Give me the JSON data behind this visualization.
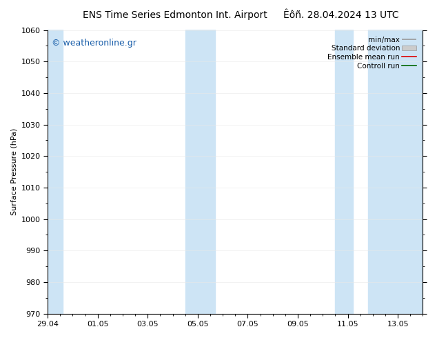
{
  "title_left": "ENS Time Series Edmonton Int. Airport",
  "title_right": "Êôñ. 28.04.2024 13 UTC",
  "ylabel": "Surface Pressure (hPa)",
  "ylim": [
    970,
    1060
  ],
  "yticks": [
    970,
    980,
    990,
    1000,
    1010,
    1020,
    1030,
    1040,
    1050,
    1060
  ],
  "xlim_start": 0,
  "xlim_end": 15,
  "xtick_labels": [
    "29.04",
    "01.05",
    "03.05",
    "05.05",
    "07.05",
    "09.05",
    "11.05",
    "13.05"
  ],
  "xtick_positions": [
    0,
    2,
    4,
    6,
    8,
    10,
    12,
    14
  ],
  "shaded_bands": [
    {
      "x_start": -0.1,
      "x_end": 0.6,
      "color": "#cde4f5"
    },
    {
      "x_start": 5.5,
      "x_end": 6.0,
      "color": "#cde4f5"
    },
    {
      "x_start": 6.0,
      "x_end": 6.7,
      "color": "#cde4f5"
    },
    {
      "x_start": 11.5,
      "x_end": 12.2,
      "color": "#cde4f5"
    },
    {
      "x_start": 12.8,
      "x_end": 15.1,
      "color": "#cde4f5"
    }
  ],
  "watermark_text": "© weatheronline.gr",
  "watermark_color": "#1a5faa",
  "bg_color": "#ffffff",
  "plot_bg_color": "#ffffff",
  "font_size_title": 10,
  "font_size_axis": 8,
  "font_size_legend": 7.5,
  "font_size_watermark": 9
}
